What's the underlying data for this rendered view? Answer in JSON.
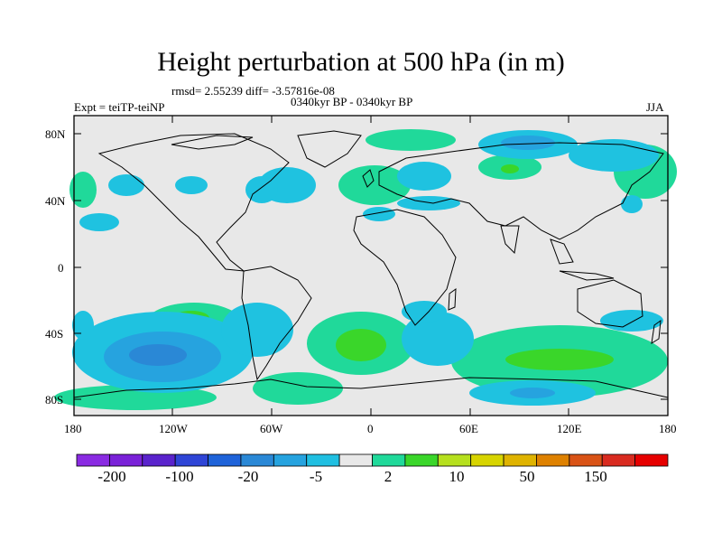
{
  "title": "Height perturbation at 500 hPa (in m)",
  "stats": "rmsd= 2.55239 diff= -3.57816e-08",
  "experiment": "Expt = teiTP-teiNP",
  "period": "0340kyr BP - 0340kyr BP",
  "season": "JJA",
  "lat_labels": [
    "80N",
    "40N",
    "0",
    "40S",
    "80S"
  ],
  "lon_labels": [
    "180",
    "120W",
    "60W",
    "0",
    "60E",
    "120E",
    "180"
  ],
  "colorbar": {
    "colors": [
      "#8a2be2",
      "#7a22d8",
      "#5a23cc",
      "#2f45d6",
      "#1f63d9",
      "#2a88d6",
      "#26a3df",
      "#20bfe1",
      "#e8e8e8",
      "#20d99a",
      "#3ad62a",
      "#b6e01e",
      "#d7d400",
      "#dfb300",
      "#de8100",
      "#d95316",
      "#d92b20",
      "#e60000"
    ],
    "labels": [
      "-200",
      "-100",
      "-20",
      "-5",
      "2",
      "10",
      "50",
      "150"
    ]
  },
  "map": {
    "ocean_color": "#e8e8e8",
    "positive_color": "#20d99a",
    "negative_color": "#1fc2e0",
    "strong_negative_color": "#26a3df",
    "deep_negative_color": "#2a88d6",
    "moderate_positive_color": "#3ad62a"
  }
}
